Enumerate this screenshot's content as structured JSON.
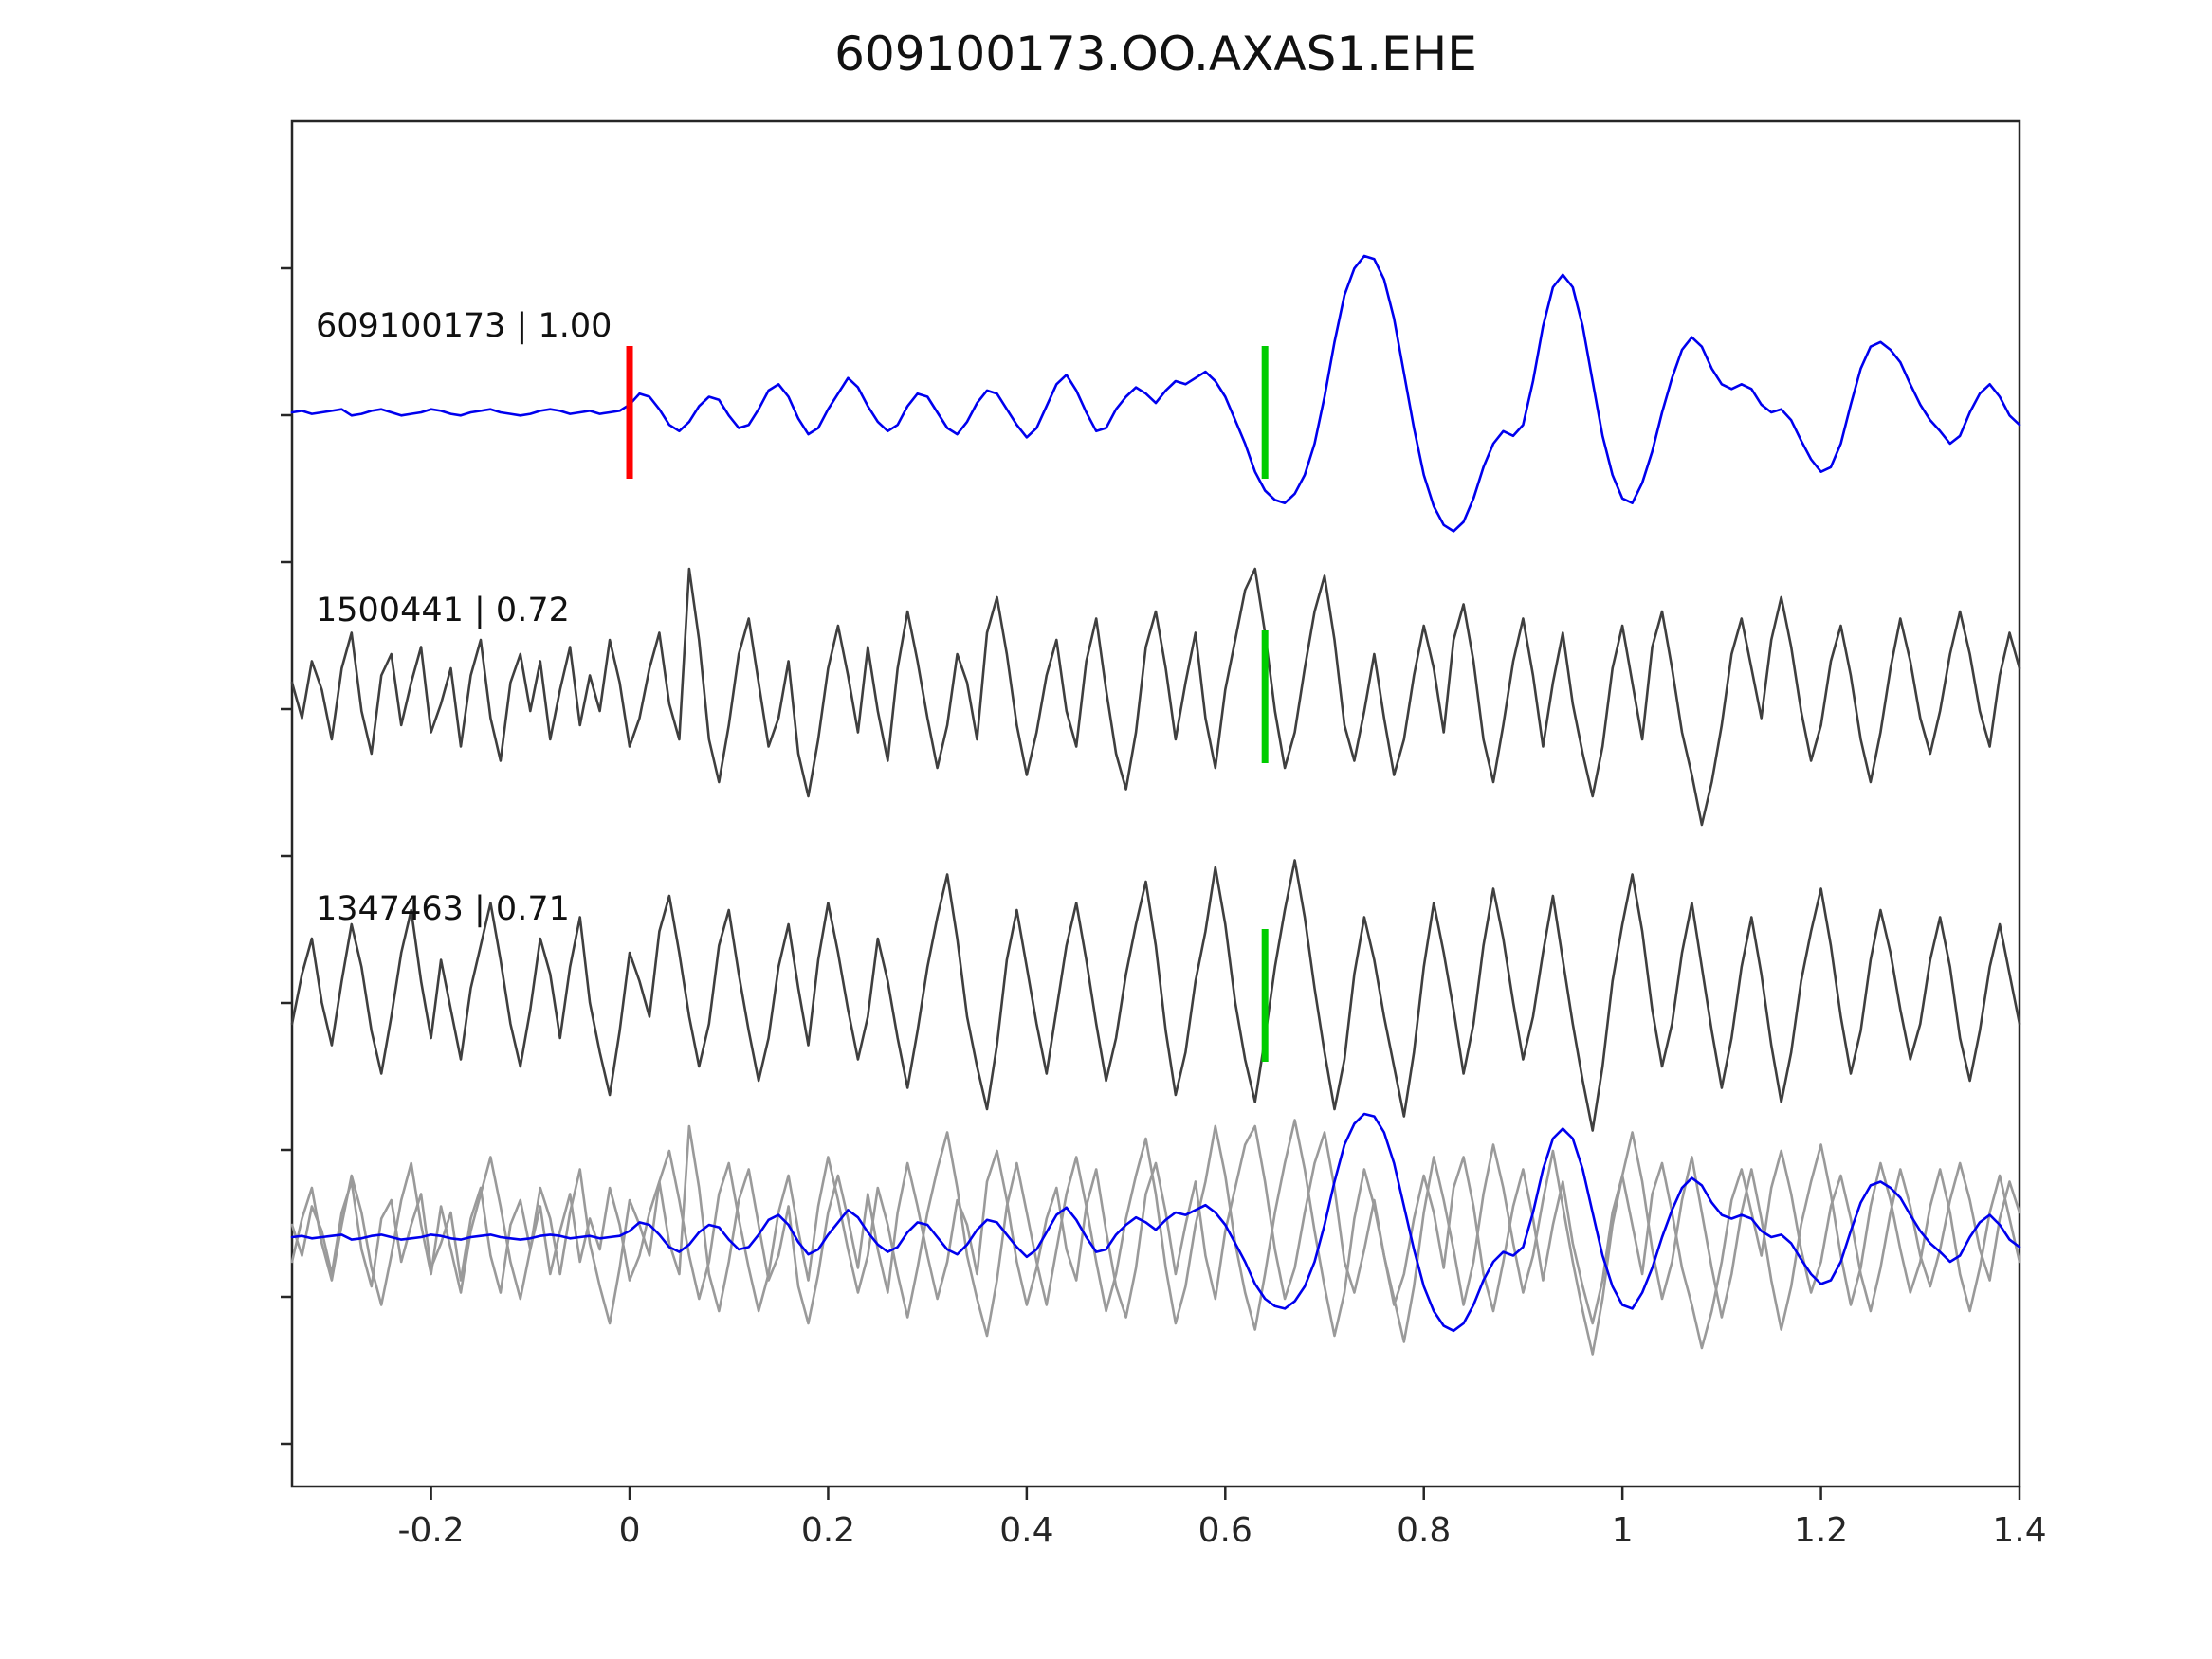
{
  "title": "609100173.OO.AXAS1.EHE",
  "colors": {
    "template_trace": "#0000ee",
    "detection_trace": "#3f3f3f",
    "overlay_gray_trace": "#9a9a9a",
    "pick_marker": "#00cc00",
    "origin_marker": "#ff0000",
    "axis": "#262626",
    "tick_label": "#262626"
  },
  "chart_data": {
    "type": "line",
    "title": "609100173.OO.AXAS1.EHE",
    "xlabel": "",
    "ylabel": "",
    "xlim": [
      -0.34,
      1.4
    ],
    "grid": false,
    "legend": "none",
    "x_ticks": [
      -0.2,
      0,
      0.2,
      0.4,
      0.6,
      0.8,
      1,
      1.2,
      1.4
    ],
    "x_tick_labels": [
      "-0.2",
      "0",
      "0.2",
      "0.4",
      "0.6",
      "0.8",
      "1",
      "1.2",
      "1.4"
    ],
    "x_start": -0.34,
    "dx": 0.01,
    "rows": [
      {
        "label": "609100173 | 1.00",
        "series": [
          "template"
        ],
        "colors": [
          "#0000ee"
        ],
        "markers": [
          {
            "x": 0.0,
            "color": "#ff0000",
            "name": "origin-marker"
          },
          {
            "x": 0.64,
            "color": "#00cc00",
            "name": "pick-marker"
          }
        ]
      },
      {
        "label": "1500441 | 0.72",
        "series": [
          "det1"
        ],
        "colors": [
          "#3f3f3f"
        ],
        "markers": [
          {
            "x": 0.64,
            "color": "#00cc00",
            "name": "pick-marker"
          }
        ]
      },
      {
        "label": "1347463 | 0.71",
        "series": [
          "det2"
        ],
        "colors": [
          "#3f3f3f"
        ],
        "markers": [
          {
            "x": 0.64,
            "color": "#00cc00",
            "name": "pick-marker"
          }
        ]
      },
      {
        "label": "",
        "series": [
          "det1",
          "det2",
          "template"
        ],
        "colors": [
          "#9a9a9a",
          "#9a9a9a",
          "#0000ee"
        ],
        "markers": []
      }
    ],
    "series": {
      "template": [
        0.0,
        0.01,
        -0.01,
        0.0,
        0.01,
        0.02,
        -0.02,
        -0.01,
        0.01,
        0.02,
        0.0,
        -0.02,
        -0.01,
        0.0,
        0.02,
        0.01,
        -0.01,
        -0.02,
        0.0,
        0.01,
        0.02,
        0.0,
        -0.01,
        -0.02,
        -0.01,
        0.01,
        0.02,
        0.01,
        -0.01,
        0.0,
        0.01,
        -0.01,
        0.0,
        0.01,
        0.05,
        0.12,
        0.1,
        0.02,
        -0.08,
        -0.12,
        -0.06,
        0.04,
        0.1,
        0.08,
        -0.02,
        -0.1,
        -0.08,
        0.02,
        0.14,
        0.18,
        0.1,
        -0.04,
        -0.14,
        -0.1,
        0.02,
        0.12,
        0.22,
        0.16,
        0.04,
        -0.06,
        -0.12,
        -0.08,
        0.04,
        0.12,
        0.1,
        0.0,
        -0.1,
        -0.14,
        -0.06,
        0.06,
        0.14,
        0.12,
        0.02,
        -0.08,
        -0.16,
        -0.1,
        0.04,
        0.18,
        0.24,
        0.14,
        0.0,
        -0.12,
        -0.1,
        0.02,
        0.1,
        0.16,
        0.12,
        0.06,
        0.14,
        0.2,
        0.18,
        0.22,
        0.26,
        0.2,
        0.1,
        -0.05,
        -0.2,
        -0.38,
        -0.5,
        -0.56,
        -0.58,
        -0.52,
        -0.4,
        -0.2,
        0.1,
        0.45,
        0.75,
        0.92,
        1.0,
        0.98,
        0.85,
        0.6,
        0.25,
        -0.1,
        -0.4,
        -0.6,
        -0.72,
        -0.76,
        -0.7,
        -0.55,
        -0.35,
        -0.2,
        -0.12,
        -0.15,
        -0.08,
        0.2,
        0.55,
        0.8,
        0.88,
        0.8,
        0.55,
        0.2,
        -0.15,
        -0.4,
        -0.55,
        -0.58,
        -0.45,
        -0.25,
        0.0,
        0.22,
        0.4,
        0.48,
        0.42,
        0.28,
        0.18,
        0.15,
        0.18,
        0.15,
        0.05,
        0.0,
        0.02,
        -0.05,
        -0.18,
        -0.3,
        -0.38,
        -0.35,
        -0.2,
        0.05,
        0.28,
        0.42,
        0.45,
        0.4,
        0.32,
        0.18,
        0.05,
        -0.05,
        -0.12,
        -0.2,
        -0.15,
        0.0,
        0.12,
        0.18,
        0.1,
        -0.02,
        -0.08
      ],
      "det1": [
        0.1,
        -0.15,
        0.25,
        0.05,
        -0.3,
        0.2,
        0.45,
        -0.1,
        -0.4,
        0.15,
        0.3,
        -0.2,
        0.1,
        0.35,
        -0.25,
        -0.05,
        0.2,
        -0.35,
        0.15,
        0.4,
        -0.15,
        -0.45,
        0.1,
        0.3,
        -0.1,
        0.25,
        -0.3,
        0.05,
        0.35,
        -0.2,
        0.15,
        -0.1,
        0.4,
        0.1,
        -0.35,
        -0.15,
        0.2,
        0.45,
        -0.05,
        -0.3,
        0.9,
        0.4,
        -0.3,
        -0.6,
        -0.2,
        0.3,
        0.55,
        0.1,
        -0.35,
        -0.15,
        0.25,
        -0.4,
        -0.7,
        -0.3,
        0.2,
        0.5,
        0.15,
        -0.25,
        0.35,
        -0.1,
        -0.45,
        0.2,
        0.6,
        0.25,
        -0.15,
        -0.5,
        -0.2,
        0.3,
        0.1,
        -0.3,
        0.45,
        0.7,
        0.3,
        -0.2,
        -0.55,
        -0.25,
        0.15,
        0.4,
        -0.1,
        -0.35,
        0.25,
        0.55,
        0.05,
        -0.4,
        -0.65,
        -0.25,
        0.35,
        0.6,
        0.2,
        -0.3,
        0.1,
        0.45,
        -0.15,
        -0.5,
        0.05,
        0.4,
        0.75,
        0.9,
        0.45,
        -0.1,
        -0.5,
        -0.25,
        0.2,
        0.6,
        0.85,
        0.4,
        -0.2,
        -0.45,
        -0.1,
        0.3,
        -0.15,
        -0.55,
        -0.3,
        0.15,
        0.5,
        0.2,
        -0.25,
        0.4,
        0.65,
        0.25,
        -0.3,
        -0.6,
        -0.2,
        0.25,
        0.55,
        0.15,
        -0.35,
        0.1,
        0.45,
        -0.05,
        -0.4,
        -0.7,
        -0.35,
        0.2,
        0.5,
        0.1,
        -0.3,
        0.35,
        0.6,
        0.2,
        -0.25,
        -0.55,
        -0.9,
        -0.6,
        -0.2,
        0.3,
        0.55,
        0.2,
        -0.15,
        0.4,
        0.7,
        0.35,
        -0.1,
        -0.45,
        -0.2,
        0.25,
        0.5,
        0.15,
        -0.3,
        -0.6,
        -0.25,
        0.2,
        0.55,
        0.25,
        -0.15,
        -0.4,
        -0.1,
        0.3,
        0.6,
        0.3,
        -0.1,
        -0.35,
        0.15,
        0.45,
        0.2
      ],
      "det2": [
        -0.2,
        0.15,
        0.4,
        -0.05,
        -0.35,
        0.1,
        0.5,
        0.2,
        -0.25,
        -0.55,
        -0.15,
        0.3,
        0.6,
        0.1,
        -0.3,
        0.25,
        -0.1,
        -0.45,
        0.05,
        0.35,
        0.65,
        0.25,
        -0.2,
        -0.5,
        -0.1,
        0.4,
        0.15,
        -0.3,
        0.2,
        0.55,
        -0.05,
        -0.4,
        -0.7,
        -0.25,
        0.3,
        0.1,
        -0.15,
        0.45,
        0.7,
        0.3,
        -0.15,
        -0.5,
        -0.2,
        0.35,
        0.6,
        0.15,
        -0.25,
        -0.6,
        -0.3,
        0.2,
        0.5,
        0.05,
        -0.35,
        0.25,
        0.65,
        0.3,
        -0.1,
        -0.45,
        -0.15,
        0.4,
        0.1,
        -0.3,
        -0.65,
        -0.25,
        0.2,
        0.55,
        0.85,
        0.4,
        -0.15,
        -0.5,
        -0.8,
        -0.35,
        0.25,
        0.6,
        0.2,
        -0.2,
        -0.55,
        -0.1,
        0.35,
        0.65,
        0.25,
        -0.2,
        -0.6,
        -0.3,
        0.15,
        0.5,
        0.8,
        0.35,
        -0.25,
        -0.7,
        -0.4,
        0.1,
        0.45,
        0.9,
        0.5,
        -0.05,
        -0.45,
        -0.75,
        -0.3,
        0.2,
        0.6,
        0.95,
        0.55,
        0.05,
        -0.4,
        -0.8,
        -0.45,
        0.15,
        0.55,
        0.25,
        -0.15,
        -0.5,
        -0.85,
        -0.4,
        0.2,
        0.65,
        0.3,
        -0.1,
        -0.55,
        -0.2,
        0.35,
        0.75,
        0.4,
        -0.05,
        -0.45,
        -0.15,
        0.3,
        0.7,
        0.25,
        -0.2,
        -0.6,
        -0.95,
        -0.5,
        0.1,
        0.5,
        0.85,
        0.45,
        -0.1,
        -0.5,
        -0.2,
        0.3,
        0.65,
        0.2,
        -0.25,
        -0.65,
        -0.3,
        0.2,
        0.55,
        0.15,
        -0.35,
        -0.75,
        -0.4,
        0.1,
        0.45,
        0.75,
        0.35,
        -0.15,
        -0.55,
        -0.25,
        0.25,
        0.6,
        0.3,
        -0.1,
        -0.45,
        -0.2,
        0.25,
        0.55,
        0.2,
        -0.3,
        -0.6,
        -0.25,
        0.2,
        0.5,
        0.15,
        -0.2
      ]
    }
  }
}
